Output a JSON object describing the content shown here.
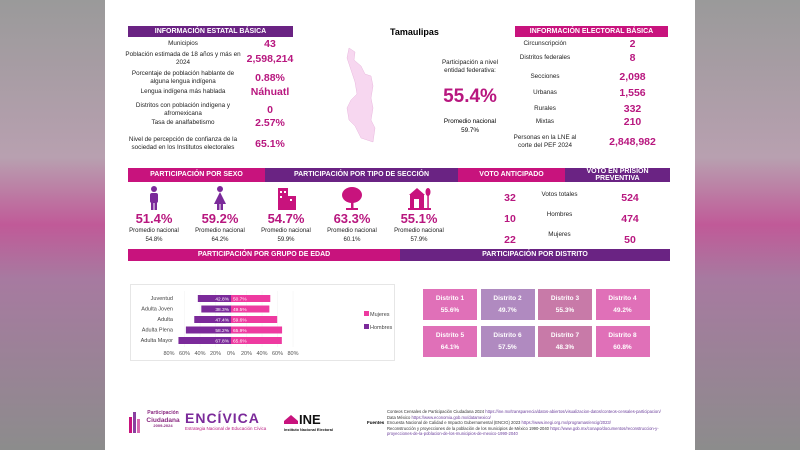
{
  "state": "Tamaulipas",
  "estatal": {
    "title": "INFORMACIÓN ESTATAL BÁSICA",
    "rows": [
      {
        "label": "Municipios",
        "value": "43"
      },
      {
        "label": "Población estimada de 18 años y más en 2024",
        "value": "2,598,214"
      },
      {
        "label": "Porcentaje de población hablante de alguna lengua indígena",
        "value": "0.88%"
      },
      {
        "label": "Lengua indígena más hablada",
        "value": "Náhuatl"
      },
      {
        "label": "Distritos con población indígena y afromexicana",
        "value": "0"
      },
      {
        "label": "Tasa de analfabetismo",
        "value": "2.57%"
      },
      {
        "label": "Nivel de percepción de confianza de la sociedad en los Institutos electorales",
        "value": "65.1%"
      }
    ]
  },
  "participacion": {
    "label": "Participación a nivel entidad federativa:",
    "value": "55.4%",
    "promedio_label": "Promedio nacional",
    "promedio_value": "59.7%"
  },
  "electoral": {
    "title": "INFORMACIÓN ELECTORAL BÁSICA",
    "rows": [
      {
        "label": "Circunscripción",
        "value": "2"
      },
      {
        "label": "Distritos federales",
        "value": "8"
      },
      {
        "label": "Secciones",
        "value": "2,098"
      },
      {
        "label": "Urbanas",
        "value": "1,556"
      },
      {
        "label": "Rurales",
        "value": "332"
      },
      {
        "label": "Mixtas",
        "value": "210"
      },
      {
        "label": "Personas en la LNE al corte del PEF 2024",
        "value": "2,848,982"
      }
    ]
  },
  "headers": {
    "sexo": "PARTICIPACIÓN POR SEXO",
    "seccion": "PARTICIPACIÓN POR TIPO DE SECCIÓN",
    "anticipado": "VOTO ANTICIPADO",
    "prision": "VOTO EN PRISIÓN PREVENTIVA",
    "edad": "PARTICIPACIÓN POR GRUPO DE EDAD",
    "distrito": "PARTICIPACIÓN POR DISTRITO"
  },
  "cards": [
    {
      "icon": "man-icon",
      "value": "51.4%",
      "label": "Promedio nacional",
      "avg": "54.8%"
    },
    {
      "icon": "woman-icon",
      "value": "59.2%",
      "label": "Promedio nacional",
      "avg": "64.2%"
    },
    {
      "icon": "building-icon",
      "value": "54.7%",
      "label": "Promedio nacional",
      "avg": "59.9%"
    },
    {
      "icon": "tree-icon",
      "value": "63.3%",
      "label": "Promedio nacional",
      "avg": "60.1%"
    },
    {
      "icon": "house-tree-icon",
      "value": "55.1%",
      "label": "Promedio nacional",
      "avg": "57.9%"
    }
  ],
  "anticipado": [
    "32",
    "10",
    "22"
  ],
  "prision": [
    {
      "label": "Votos totales",
      "value": "524"
    },
    {
      "label": "Hombres",
      "value": "474"
    },
    {
      "label": "Mujeres",
      "value": "50"
    }
  ],
  "chart_data": {
    "type": "bar",
    "orientation": "horizontal-diverging",
    "categories": [
      "Juventud",
      "Adulta Joven",
      "Adulta",
      "Adulta Plena",
      "Adulta Mayor"
    ],
    "series": [
      {
        "name": "Hombres",
        "color": "#7b2a9a",
        "values": [
          42.8,
          38.3,
          47.4,
          58.2,
          67.8
        ],
        "labels": [
          "42.8%",
          "38.3%",
          "47.4%",
          "58.2%",
          "67.8%"
        ]
      },
      {
        "name": "Mujeres",
        "color": "#ee3aa0",
        "values": [
          50.7,
          49.5,
          59.6,
          65.9,
          65.6
        ],
        "labels": [
          "50.7%",
          "49.5%",
          "59.6%",
          "65.9%",
          "65.6%"
        ]
      }
    ],
    "xticks": [
      "80%",
      "60%",
      "40%",
      "20%",
      "0%",
      "20%",
      "40%",
      "60%",
      "80%"
    ],
    "xlim": [
      -80,
      80
    ],
    "legend": "right"
  },
  "distritos": [
    {
      "name": "Distrito 1",
      "value": "55.6%",
      "color": "#e070b8"
    },
    {
      "name": "Distrito 2",
      "value": "49.7%",
      "color": "#b08ac0"
    },
    {
      "name": "Distrito 3",
      "value": "55.3%",
      "color": "#c87aa8"
    },
    {
      "name": "Distrito 4",
      "value": "49.2%",
      "color": "#e070b8"
    },
    {
      "name": "Distrito 5",
      "value": "64.1%",
      "color": "#e070b8"
    },
    {
      "name": "Distrito 6",
      "value": "57.5%",
      "color": "#b08ac0"
    },
    {
      "name": "Distrito 7",
      "value": "48.3%",
      "color": "#c87aa8"
    },
    {
      "name": "Distrito 8",
      "value": "60.8%",
      "color": "#e070b8"
    }
  ],
  "logos": {
    "conteos": "Conteos Censales de Participación Ciudadana 2009-2024",
    "encivica": "ENCÍVICA",
    "encivica_sub": "Estrategia Nacional de Educación Cívica",
    "encivica_years": "2024 2026",
    "ine": "INE",
    "ine_sub": "Instituto Nacional Electoral"
  },
  "fuentes": {
    "label": "Fuentes",
    "lines": [
      {
        "text": "Conteos Censales de Participación Ciudadana 2024",
        "url": "https://ine.mx/transparencia/datos-abiertos/visualizacion-datos/conteos-censales-participacion/"
      },
      {
        "text": "Data México",
        "url": "https://www.economia.gob.mx/datamexico/"
      },
      {
        "text": "Encuesta Nacional de Calidad e Impacto Gubernamental (ENCIG) 2023",
        "url": "https://www.inegi.org.mx/programas/encig/2023/"
      },
      {
        "text": "Reconstrucción y proyecciones de la población de los municipios de México 1990-2040",
        "url": "https://www.gob.mx/conapo/documentos/reconstruccion-y-"
      },
      {
        "text": "",
        "url": "proyecciones-de-la-poblacion-de-los-municipios-de-mexico-1990-2040"
      }
    ]
  }
}
